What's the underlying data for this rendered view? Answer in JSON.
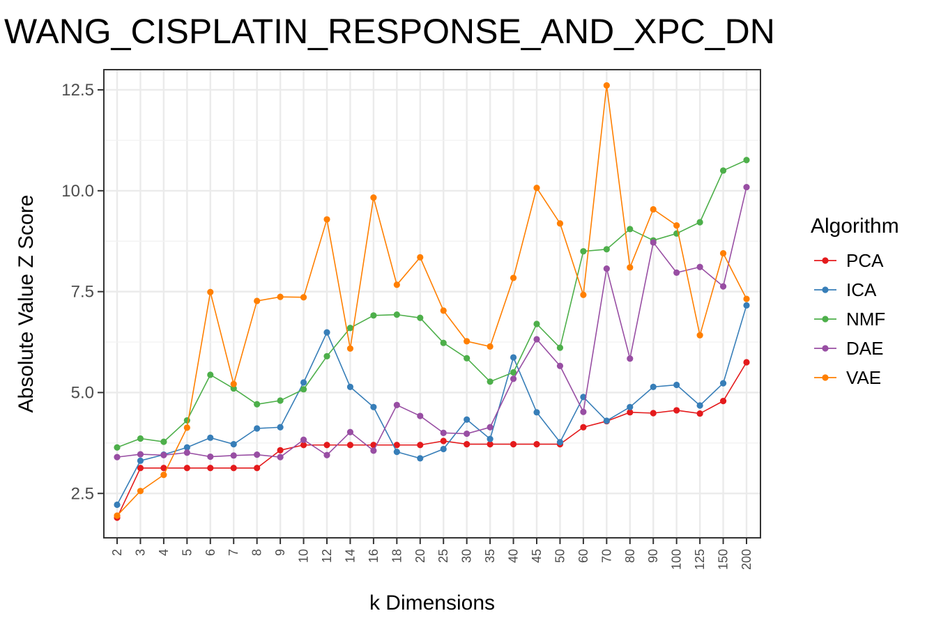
{
  "chart_data": {
    "type": "line",
    "title": "WANG_CISPLATIN_RESPONSE_AND_XPC_DN",
    "xlabel": "k Dimensions",
    "ylabel": "Absolute Value Z Score",
    "categories": [
      "2",
      "3",
      "4",
      "5",
      "6",
      "7",
      "8",
      "9",
      "10",
      "12",
      "14",
      "16",
      "18",
      "20",
      "25",
      "30",
      "35",
      "40",
      "45",
      "50",
      "60",
      "70",
      "80",
      "90",
      "100",
      "125",
      "150",
      "200"
    ],
    "y_ticks": [
      "2.5",
      "5.0",
      "7.5",
      "10.0",
      "12.5"
    ],
    "ylim": [
      1.4,
      13.0
    ],
    "grid": true,
    "legend_title": "Algorithm",
    "legend_position": "right",
    "series": [
      {
        "name": "PCA",
        "color": "#E41A1C",
        "values": [
          1.9,
          3.13,
          3.13,
          3.13,
          3.13,
          3.13,
          3.13,
          3.57,
          3.7,
          3.7,
          3.7,
          3.7,
          3.7,
          3.7,
          3.8,
          3.72,
          3.72,
          3.72,
          3.72,
          3.72,
          4.14,
          4.29,
          4.51,
          4.49,
          4.56,
          4.48,
          4.79,
          5.75
        ]
      },
      {
        "name": "ICA",
        "color": "#377EB8",
        "values": [
          2.22,
          3.31,
          3.46,
          3.64,
          3.88,
          3.72,
          4.11,
          4.14,
          5.25,
          6.49,
          5.14,
          4.64,
          3.53,
          3.37,
          3.6,
          4.33,
          3.85,
          5.87,
          4.51,
          3.77,
          4.89,
          4.3,
          4.64,
          5.14,
          5.19,
          4.68,
          5.23,
          7.16
        ]
      },
      {
        "name": "NMF",
        "color": "#4DAF4A",
        "values": [
          3.64,
          3.86,
          3.78,
          4.31,
          5.44,
          5.1,
          4.71,
          4.8,
          5.08,
          5.9,
          6.6,
          6.91,
          6.93,
          6.85,
          6.23,
          5.85,
          5.27,
          5.5,
          6.7,
          6.11,
          8.5,
          8.55,
          9.05,
          8.77,
          8.94,
          9.22,
          10.5,
          10.76
        ]
      },
      {
        "name": "DAE",
        "color": "#984EA3",
        "values": [
          3.4,
          3.47,
          3.45,
          3.51,
          3.41,
          3.44,
          3.46,
          3.4,
          3.83,
          3.45,
          4.02,
          3.56,
          4.69,
          4.42,
          4.0,
          3.98,
          4.14,
          5.34,
          6.32,
          5.66,
          4.52,
          8.07,
          5.84,
          8.72,
          7.97,
          8.11,
          7.63,
          10.09
        ]
      },
      {
        "name": "VAE",
        "color": "#FF7F00",
        "values": [
          1.95,
          2.56,
          2.96,
          4.13,
          7.49,
          5.21,
          7.27,
          7.37,
          7.36,
          9.29,
          6.09,
          9.83,
          7.67,
          8.35,
          7.03,
          6.27,
          6.14,
          7.84,
          10.07,
          9.19,
          7.42,
          12.61,
          8.1,
          9.54,
          9.14,
          6.42,
          8.45,
          7.32
        ]
      }
    ]
  }
}
